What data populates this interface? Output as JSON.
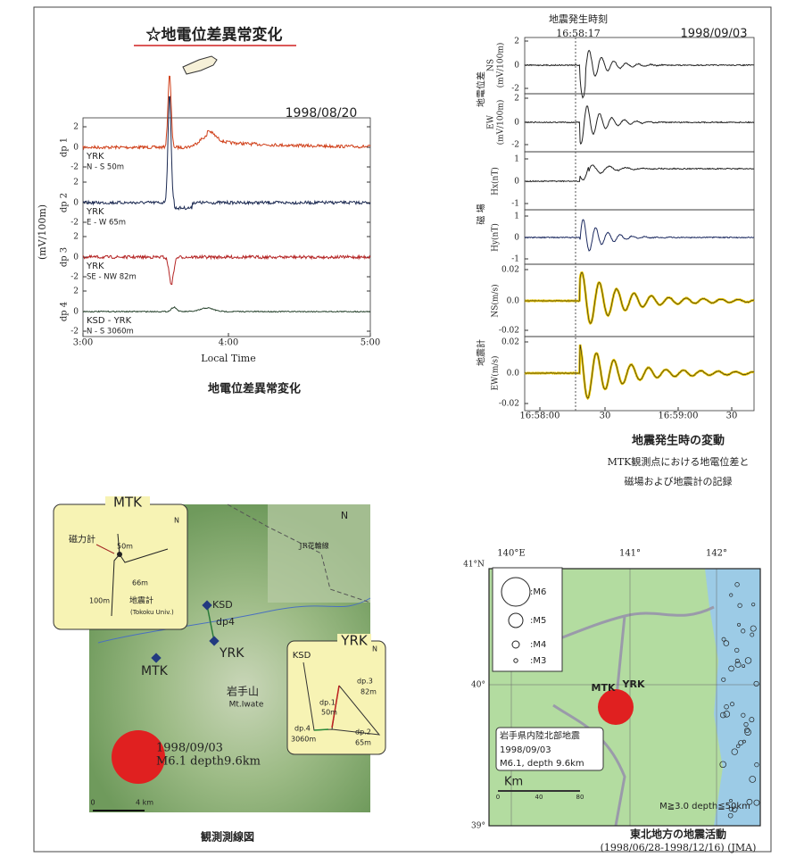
{
  "anomaly_panel": {
    "heading": "☆地電位差異常変化",
    "date": "1998/08/20",
    "y_axis_label": "(mV/100m)",
    "x_axis_label": "Local Time",
    "x_ticks": [
      "3:00",
      "4:00",
      "5:00"
    ],
    "caption": "地電位差異常変化",
    "traces": [
      {
        "name": "dp 1",
        "station": "YRK",
        "line": "N - S  50m",
        "ticks": [
          "2",
          "0",
          "-2"
        ]
      },
      {
        "name": "dp 2",
        "station": "YRK",
        "line": "E - W  65m",
        "ticks": [
          "2",
          "0",
          "-2"
        ]
      },
      {
        "name": "dp 3",
        "station": "YRK",
        "line": "SE - NW  82m",
        "ticks": [
          "2",
          "0",
          "-2"
        ]
      },
      {
        "name": "dp 4",
        "station": "KSD - YRK",
        "line": "N - S  3060m",
        "ticks": [
          "2",
          "0",
          "-2"
        ]
      }
    ]
  },
  "event_panel": {
    "event_label": "地震発生時刻",
    "event_time": "16:58:17",
    "date": "1998/09/03",
    "groups": [
      "地電位差",
      "磁 場",
      "地震計"
    ],
    "traces": [
      {
        "label": [
          "NS",
          "(mV/100m)"
        ],
        "ticks": [
          "2",
          "0",
          "-2"
        ]
      },
      {
        "label": [
          "EW",
          "(mV/100m)"
        ],
        "ticks": [
          "2",
          "0",
          "-2"
        ]
      },
      {
        "label": [
          "Hx(nT)"
        ],
        "ticks": [
          "1",
          "0",
          "-1"
        ]
      },
      {
        "label": [
          "Hy(nT)"
        ],
        "ticks": [
          "1",
          "0",
          "-1"
        ]
      },
      {
        "label": [
          "NS(m/s)"
        ],
        "ticks": [
          "0.02",
          "0.0",
          "-0.02"
        ]
      },
      {
        "label": [
          "EW(m/s)"
        ],
        "ticks": [
          "0.02",
          "0.0",
          "-0.02"
        ]
      }
    ],
    "x_ticks": [
      "16:58:00",
      "30",
      "16:59:00",
      "30"
    ],
    "caption": "地震発生時の変動",
    "caption_lines": [
      "MTK観測点における地電位差と",
      "磁場および地震計の記録"
    ]
  },
  "survey_map": {
    "mtk_callout": {
      "title": "MTK",
      "magnetometer": "磁力計",
      "d1": "50m",
      "d2": "66m",
      "d3": "100m",
      "seismometer": "地震計",
      "owner": "(Tokoku Univ.)",
      "north": "N"
    },
    "yrk_callout": {
      "title": "YRK",
      "ksd": "KSD",
      "north": "N",
      "dp1": "dp.1",
      "dp1_len": "50m",
      "dp2": "dp.2",
      "dp2_len": "65m",
      "dp3": "dp.3",
      "dp3_len": "82m",
      "dp4": "dp.4",
      "dp4_len": "3060m"
    },
    "labels": {
      "ksd": "KSD",
      "dp4": "dp4",
      "yrk": "YRK",
      "mtk": "MTK",
      "mountain": "岩手山",
      "mountain_en": "Mt.Iwate",
      "railway": "JR花輪線",
      "north": "N",
      "event_date": "1998/09/03",
      "event_info": "M6.1 depth9.6km"
    },
    "scale": [
      "0",
      "4 km"
    ],
    "caption": "観測測線図"
  },
  "seismicity_map": {
    "lon_labels": [
      "140°E",
      "141°",
      "142°"
    ],
    "lat_labels": [
      "41°N",
      "40°",
      "39°"
    ],
    "legend": [
      ":M6",
      ":M5",
      ":M4",
      ":M3"
    ],
    "stations": [
      "MTK",
      "YRK"
    ],
    "event": [
      "岩手県内陸北部地震",
      "1998/09/03",
      "M6.1, depth 9.6km"
    ],
    "scale_unit": "Km",
    "scale_ticks": [
      "0",
      "40",
      "80"
    ],
    "filter": "M≧3.0 depth≦50km",
    "caption": "東北地方の地震活動",
    "caption_sub": "(1998/06/28-1998/12/16) (JMA)"
  }
}
